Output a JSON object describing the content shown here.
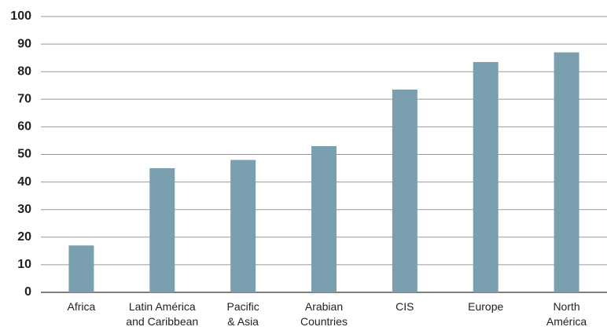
{
  "chart_data": {
    "type": "bar",
    "categories": [
      "Africa",
      "Latin América\nand Caribbean",
      "Pacific\n& Asia",
      "Arabian\nCountries",
      "CIS",
      "Europe",
      "North\nAmérica"
    ],
    "values": [
      17,
      45,
      48,
      53,
      73.5,
      83.5,
      87
    ],
    "color": "#7aa0b0",
    "ylim": [
      0,
      100
    ],
    "yticks": [
      0,
      10,
      20,
      30,
      40,
      50,
      60,
      70,
      80,
      90,
      100
    ],
    "grid": true
  }
}
